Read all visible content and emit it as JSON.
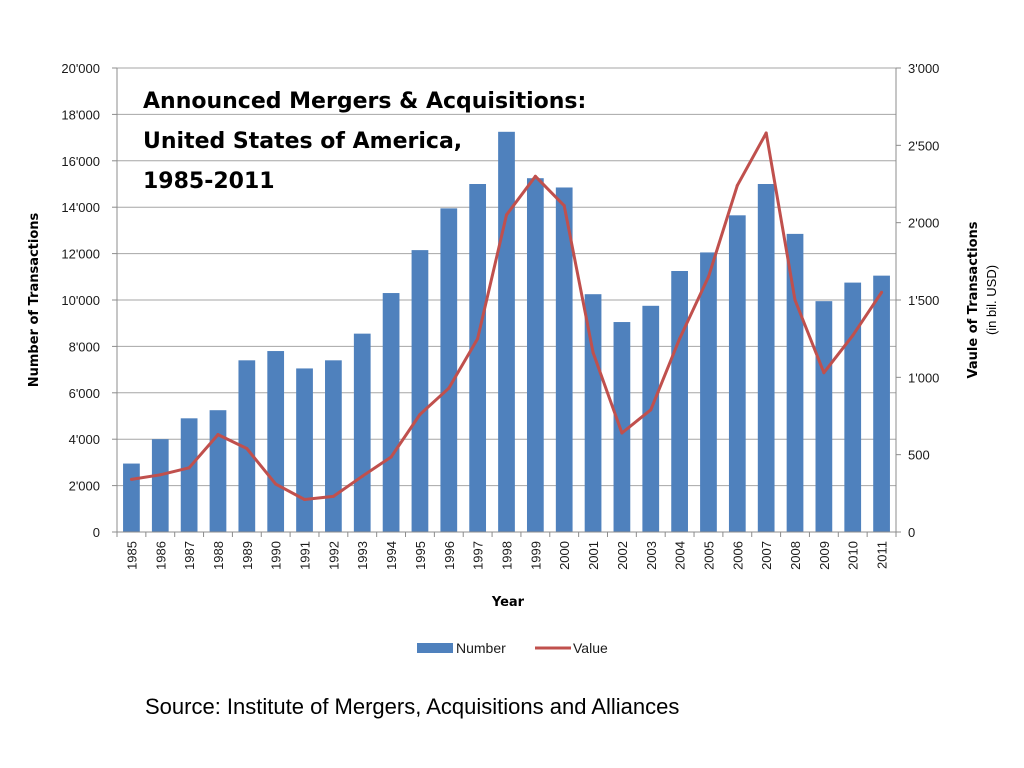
{
  "chart_data": {
    "type": "bar",
    "title_lines": [
      "Announced Mergers & Acquisitions:",
      "United States of America,",
      "1985-2011"
    ],
    "xlabel": "Year",
    "ylabel": "Number of Transactions",
    "y2label": "Vaule of Transactions",
    "y2label_unit": "(in bil. USD)",
    "categories": [
      "1985",
      "1986",
      "1987",
      "1988",
      "1989",
      "1990",
      "1991",
      "1992",
      "1993",
      "1994",
      "1995",
      "1996",
      "1997",
      "1998",
      "1999",
      "2000",
      "2001",
      "2002",
      "2003",
      "2004",
      "2005",
      "2006",
      "2007",
      "2008",
      "2009",
      "2010",
      "2011"
    ],
    "ylim": [
      0,
      20000
    ],
    "yticks": [
      0,
      2000,
      4000,
      6000,
      8000,
      10000,
      12000,
      14000,
      16000,
      18000,
      20000
    ],
    "ytick_labels": [
      "0",
      "2'000",
      "4'000",
      "6'000",
      "8'000",
      "10'000",
      "12'000",
      "14'000",
      "16'000",
      "18'000",
      "20'000"
    ],
    "y2lim": [
      0,
      3000
    ],
    "y2ticks": [
      0,
      500,
      1000,
      1500,
      2000,
      2500,
      3000
    ],
    "y2tick_labels": [
      "0",
      "500",
      "1'000",
      "1'500",
      "2'000",
      "2'500",
      "3'000"
    ],
    "grid": "horizontal",
    "legend_position": "bottom",
    "series": [
      {
        "name": "Number",
        "type": "bar",
        "axis": "left",
        "color": "#4f81bd",
        "values": [
          2950,
          4000,
          4900,
          5250,
          7400,
          7800,
          7050,
          7400,
          8550,
          10300,
          12150,
          13950,
          15000,
          17250,
          15250,
          14850,
          10250,
          9050,
          9750,
          11250,
          12050,
          13650,
          15000,
          12850,
          9950,
          10750,
          11050
        ]
      },
      {
        "name": "Value",
        "type": "line",
        "axis": "right",
        "color": "#c0504d",
        "values": [
          340,
          370,
          415,
          630,
          540,
          310,
          210,
          230,
          360,
          485,
          760,
          930,
          1250,
          2050,
          2300,
          2110,
          1160,
          640,
          790,
          1250,
          1650,
          2240,
          2580,
          1500,
          1030,
          1270,
          1550
        ]
      }
    ]
  },
  "source_text": "Source:  Institute of Mergers, Acquisitions and Alliances"
}
